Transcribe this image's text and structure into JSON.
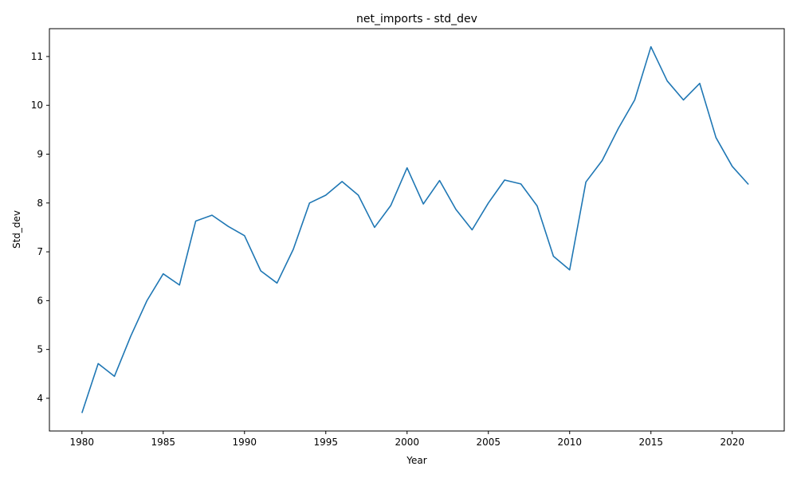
{
  "chart_data": {
    "type": "line",
    "title": "net_imports - std_dev",
    "xlabel": "Year",
    "ylabel": "Std_dev",
    "xlim": [
      1978,
      2023.2
    ],
    "ylim": [
      3.33,
      11.57
    ],
    "xticks": [
      1980,
      1985,
      1990,
      1995,
      2000,
      2005,
      2010,
      2015,
      2020
    ],
    "yticks": [
      4,
      5,
      6,
      7,
      8,
      9,
      10,
      11
    ],
    "grid": false,
    "legend": "none",
    "series": [
      {
        "color": "#1f77b4",
        "x": [
          1980,
          1981,
          1982,
          1983,
          1984,
          1985,
          1986,
          1987,
          1988,
          1989,
          1990,
          1991,
          1992,
          1993,
          1994,
          1995,
          1996,
          1997,
          1998,
          1999,
          2000,
          2001,
          2002,
          2003,
          2004,
          2005,
          2006,
          2007,
          2008,
          2009,
          2010,
          2011,
          2012,
          2013,
          2014,
          2015,
          2016,
          2017,
          2018,
          2019,
          2020,
          2021
        ],
        "y": [
          3.7,
          4.71,
          4.45,
          5.27,
          6.0,
          6.55,
          6.32,
          7.63,
          7.75,
          7.52,
          7.33,
          6.61,
          6.36,
          7.05,
          8.0,
          8.16,
          8.44,
          8.16,
          7.5,
          7.95,
          8.72,
          7.98,
          8.46,
          7.87,
          7.45,
          8.0,
          8.47,
          8.39,
          7.94,
          6.91,
          6.63,
          8.43,
          8.87,
          9.53,
          10.11,
          11.2,
          10.5,
          10.11,
          10.45,
          9.34,
          8.75,
          8.38
        ]
      }
    ]
  }
}
